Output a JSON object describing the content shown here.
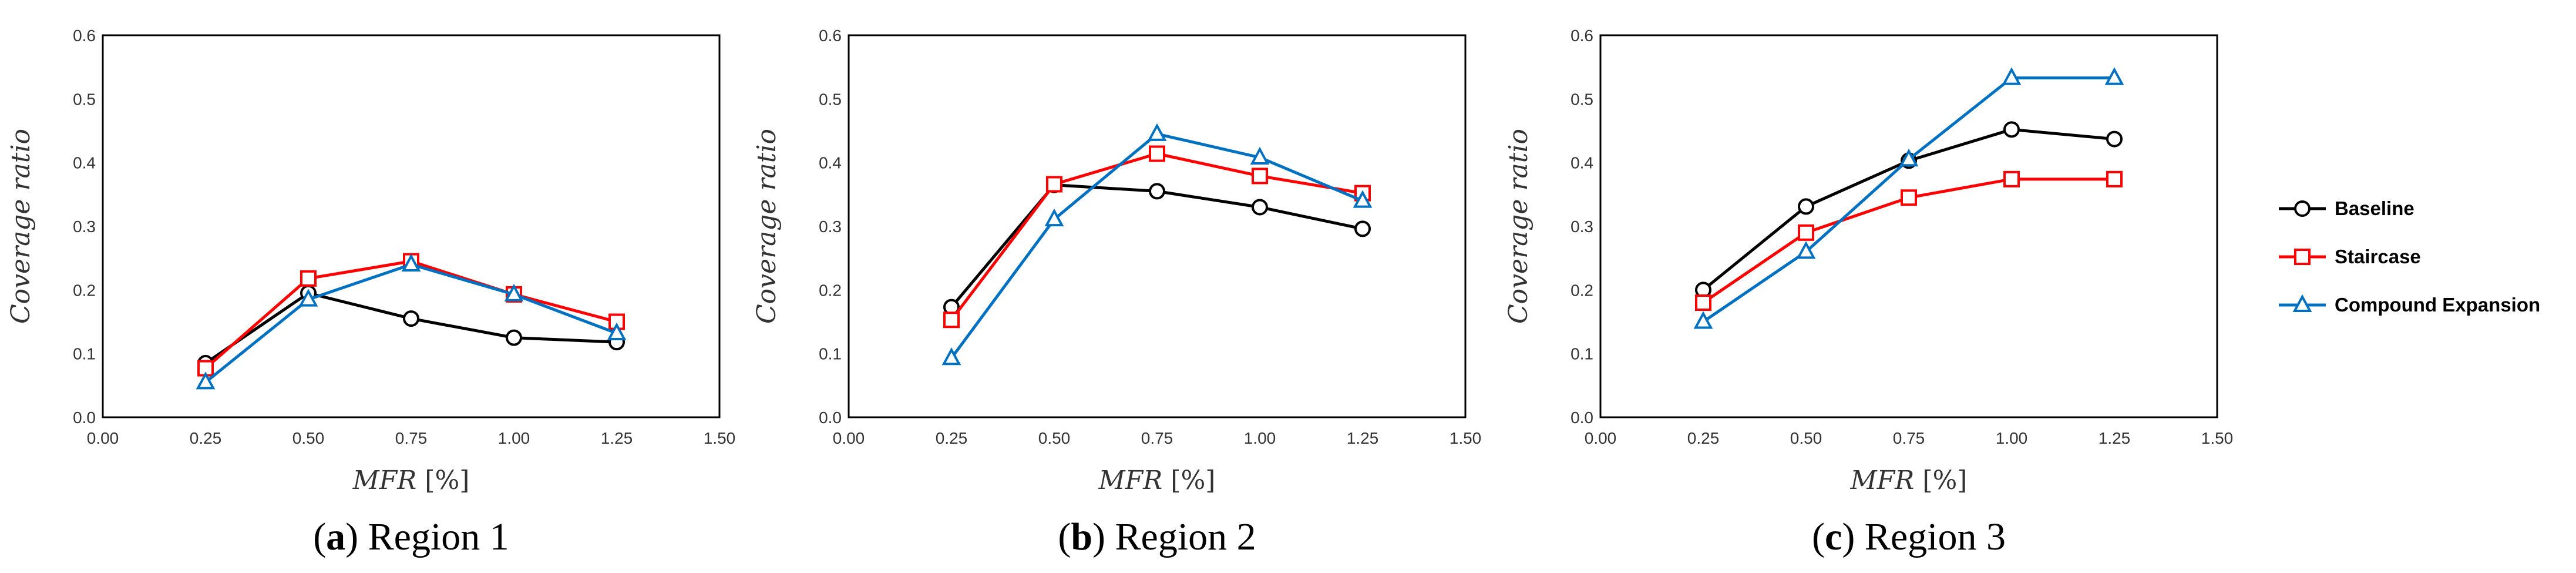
{
  "chart_data": [
    {
      "type": "line",
      "caption": {
        "letter": "a",
        "text": "Region 1"
      },
      "xlabel": "MFR",
      "xlabel_unit": "[%]",
      "ylabel": "Coverage ratio",
      "xlim": [
        0,
        1.5
      ],
      "ylim": [
        0,
        0.6
      ],
      "xticks": [
        "0.00",
        "0.25",
        "0.50",
        "0.75",
        "1.00",
        "1.25",
        "1.50"
      ],
      "yticks": [
        "0.0",
        "0.1",
        "0.2",
        "0.3",
        "0.4",
        "0.5",
        "0.6"
      ],
      "x": [
        0.25,
        0.5,
        0.75,
        1.0,
        1.25
      ],
      "series": [
        {
          "name": "Baseline",
          "values": [
            0.085,
            0.195,
            0.155,
            0.125,
            0.118
          ]
        },
        {
          "name": "Staircase",
          "values": [
            0.077,
            0.218,
            0.245,
            0.193,
            0.15
          ]
        },
        {
          "name": "Compound Expansion",
          "values": [
            0.055,
            0.185,
            0.24,
            0.193,
            0.132
          ]
        }
      ]
    },
    {
      "type": "line",
      "caption": {
        "letter": "b",
        "text": "Region 2"
      },
      "xlabel": "MFR",
      "xlabel_unit": "[%]",
      "ylabel": "Coverage ratio",
      "xlim": [
        0,
        1.5
      ],
      "ylim": [
        0,
        0.6
      ],
      "xticks": [
        "0.00",
        "0.25",
        "0.50",
        "0.75",
        "1.00",
        "1.25",
        "1.50"
      ],
      "yticks": [
        "0.0",
        "0.1",
        "0.2",
        "0.3",
        "0.4",
        "0.5",
        "0.6"
      ],
      "x": [
        0.25,
        0.5,
        0.75,
        1.0,
        1.25
      ],
      "series": [
        {
          "name": "Baseline",
          "values": [
            0.173,
            0.365,
            0.355,
            0.33,
            0.296
          ]
        },
        {
          "name": "Staircase",
          "values": [
            0.153,
            0.366,
            0.414,
            0.379,
            0.352
          ]
        },
        {
          "name": "Compound Expansion",
          "values": [
            0.093,
            0.311,
            0.445,
            0.408,
            0.34
          ]
        }
      ]
    },
    {
      "type": "line",
      "caption": {
        "letter": "c",
        "text": "Region 3"
      },
      "xlabel": "MFR",
      "xlabel_unit": "[%]",
      "ylabel": "Coverage ratio",
      "xlim": [
        0,
        1.5
      ],
      "ylim": [
        0,
        0.6
      ],
      "xticks": [
        "0.00",
        "0.25",
        "0.50",
        "0.75",
        "1.00",
        "1.25",
        "1.50"
      ],
      "yticks": [
        "0.0",
        "0.1",
        "0.2",
        "0.3",
        "0.4",
        "0.5",
        "0.6"
      ],
      "x": [
        0.25,
        0.5,
        0.75,
        1.0,
        1.25
      ],
      "series": [
        {
          "name": "Baseline",
          "values": [
            0.2,
            0.331,
            0.403,
            0.452,
            0.437
          ]
        },
        {
          "name": "Staircase",
          "values": [
            0.18,
            0.29,
            0.345,
            0.374,
            0.374
          ]
        },
        {
          "name": "Compound Expansion",
          "values": [
            0.15,
            0.26,
            0.405,
            0.533,
            0.533
          ]
        }
      ]
    }
  ],
  "legend": {
    "placement": "right",
    "entries": [
      {
        "name": "Baseline",
        "color": "#000000",
        "marker": "circle"
      },
      {
        "name": "Staircase",
        "color": "#ff0000",
        "marker": "square"
      },
      {
        "name": "Compound Expansion",
        "color": "#0070c0",
        "marker": "triangle"
      }
    ]
  }
}
